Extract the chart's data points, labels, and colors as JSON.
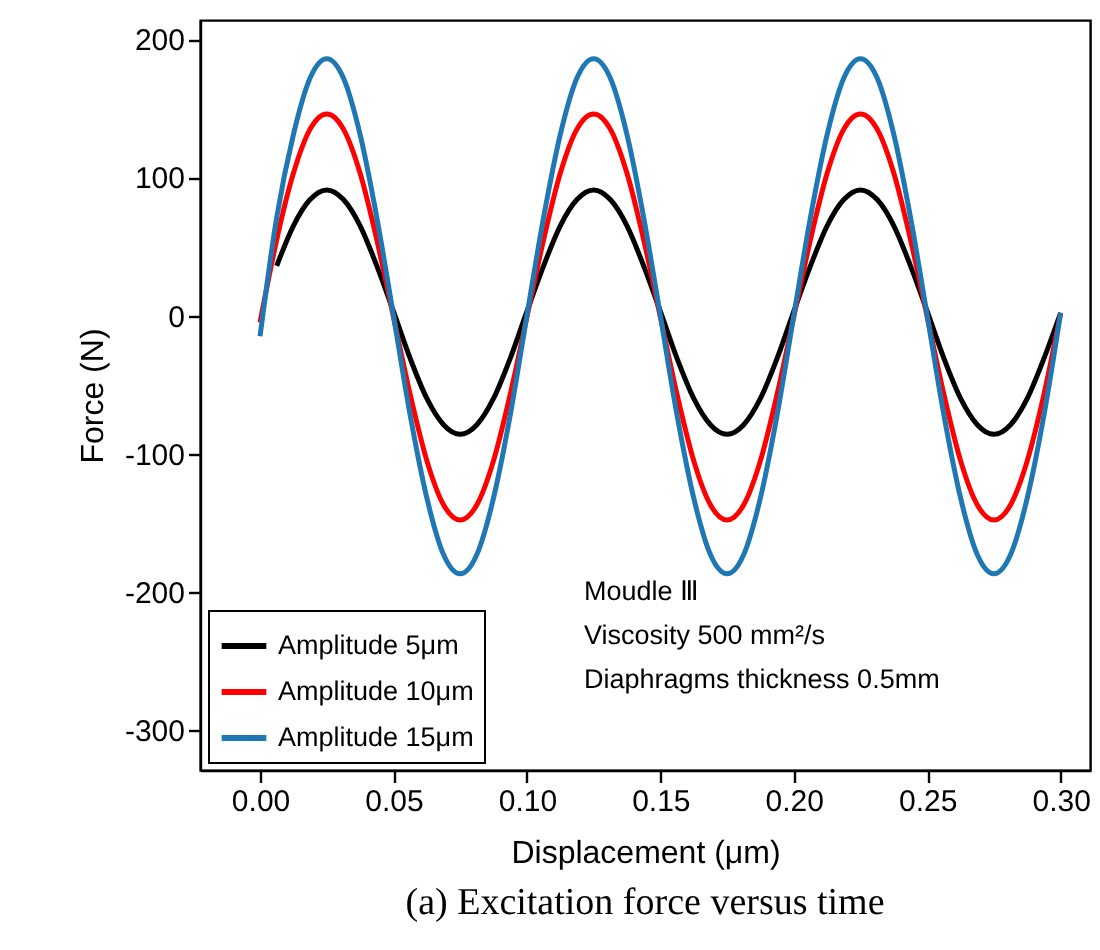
{
  "chart_data": {
    "type": "line",
    "title": "(a) Excitation force versus time",
    "xlabel": "Displacement (μm)",
    "ylabel": "Force (N)",
    "x": [
      0,
      0.00625,
      0.0125,
      0.01875,
      0.025,
      0.03125,
      0.0375,
      0.04375,
      0.05,
      0.05625,
      0.0625,
      0.06875,
      0.075,
      0.08125,
      0.0875,
      0.09375,
      0.1,
      0.10625,
      0.1125,
      0.11875,
      0.125,
      0.13125,
      0.1375,
      0.14375,
      0.15,
      0.15625,
      0.1625,
      0.16875,
      0.175,
      0.18125,
      0.1875,
      0.19375,
      0.2,
      0.20625,
      0.2125,
      0.21875,
      0.225,
      0.23125,
      0.2375,
      0.24375,
      0.25,
      0.25625,
      0.2625,
      0.26875,
      0.275,
      0.28125,
      0.2875,
      0.29375,
      0.3
    ],
    "series": [
      {
        "name": "Amplitude 5μm",
        "color": "#000000",
        "values": [
          null,
          36,
          65,
          84,
          91,
          84,
          65,
          36,
          3,
          -31,
          -60,
          -79,
          -86,
          -79,
          -60,
          -31,
          3,
          36,
          65,
          84,
          91,
          84,
          65,
          36,
          3,
          -31,
          -60,
          -79,
          -86,
          -79,
          -60,
          -31,
          3,
          36,
          65,
          84,
          91,
          84,
          65,
          36,
          3,
          -31,
          -60,
          -79,
          -86,
          -79,
          -60,
          -31,
          2
        ]
      },
      {
        "name": "Amplitude 10μm",
        "color": "#ff0000",
        "values": [
          -5,
          55,
          103,
          135,
          146,
          135,
          103,
          55,
          -1,
          -57,
          -105,
          -137,
          -148,
          -137,
          -105,
          -57,
          -1,
          55,
          103,
          135,
          146,
          135,
          103,
          55,
          -1,
          -57,
          -105,
          -137,
          -148,
          -137,
          -105,
          -57,
          -1,
          55,
          103,
          135,
          146,
          135,
          103,
          55,
          -1,
          -57,
          -105,
          -137,
          -148,
          -137,
          -105,
          -57,
          2
        ]
      },
      {
        "name": "Amplitude 15μm",
        "color": "#1f77b4",
        "values": [
          -15,
          71,
          131,
          172,
          186,
          172,
          131,
          71,
          0,
          -72,
          -132,
          -173,
          -187,
          -173,
          -132,
          -72,
          0,
          71,
          131,
          172,
          186,
          172,
          131,
          71,
          0,
          -72,
          -132,
          -173,
          -187,
          -173,
          -132,
          -72,
          0,
          71,
          131,
          172,
          186,
          172,
          131,
          71,
          0,
          -72,
          -132,
          -173,
          -187,
          -173,
          -132,
          -72,
          2
        ]
      }
    ],
    "xlim": [
      -0.0225,
      0.311
    ],
    "xticks": [
      {
        "value": 0,
        "label": "0.00"
      },
      0.05,
      {
        "value": 0.1,
        "label": "0.10"
      },
      0.15,
      {
        "value": 0.2,
        "label": "0.20"
      },
      0.25,
      {
        "value": 0.3,
        "label": "0.30"
      }
    ],
    "ylim": [
      -329,
      214
    ],
    "yticks": [
      -300,
      -200,
      -100,
      0,
      100,
      200
    ],
    "annotations": [
      "Moudle Ⅲ",
      "Viscosity 500 mm²/s",
      "Diaphragms thickness 0.5mm"
    ],
    "legend": "bottom left",
    "grid": false,
    "marker": "none",
    "line_style": "solid"
  }
}
